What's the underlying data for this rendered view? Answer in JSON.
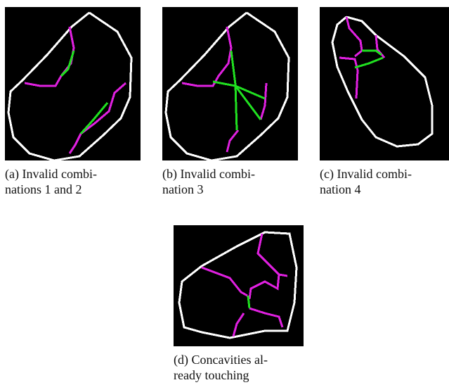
{
  "subfigures": [
    {
      "caption_lines": [
        "(a) Invalid combi-",
        "nations 1 and 2"
      ]
    },
    {
      "caption_lines": [
        "(b) Invalid combi-",
        "nation 3"
      ]
    },
    {
      "caption_lines": [
        "(c) Invalid combi-",
        "nation 4"
      ]
    },
    {
      "caption_lines": [
        "(d) Concavities al-",
        "ready touching"
      ]
    }
  ]
}
